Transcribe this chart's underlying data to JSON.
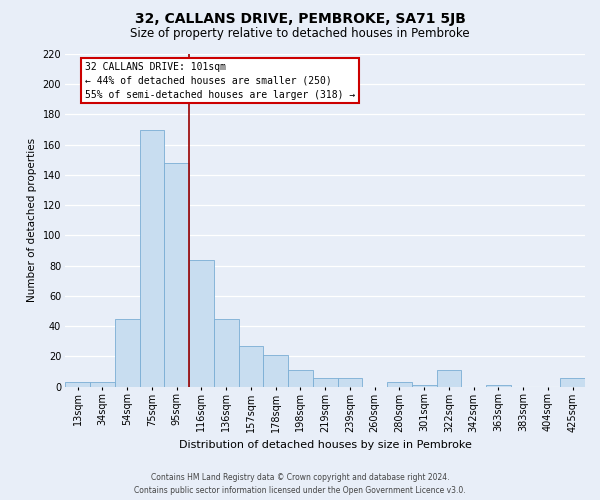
{
  "title": "32, CALLANS DRIVE, PEMBROKE, SA71 5JB",
  "subtitle": "Size of property relative to detached houses in Pembroke",
  "xlabel": "Distribution of detached houses by size in Pembroke",
  "ylabel": "Number of detached properties",
  "bin_labels": [
    "13sqm",
    "34sqm",
    "54sqm",
    "75sqm",
    "95sqm",
    "116sqm",
    "136sqm",
    "157sqm",
    "178sqm",
    "198sqm",
    "219sqm",
    "239sqm",
    "260sqm",
    "280sqm",
    "301sqm",
    "322sqm",
    "342sqm",
    "363sqm",
    "383sqm",
    "404sqm",
    "425sqm"
  ],
  "bar_values": [
    3,
    3,
    45,
    170,
    148,
    84,
    45,
    27,
    21,
    11,
    6,
    6,
    0,
    3,
    1,
    11,
    0,
    1,
    0,
    0,
    6
  ],
  "bar_color": "#c8ddf0",
  "bar_edge_color": "#7aadd4",
  "vline_x": 4.5,
  "vline_color": "#990000",
  "annotation_title": "32 CALLANS DRIVE: 101sqm",
  "annotation_line1": "← 44% of detached houses are smaller (250)",
  "annotation_line2": "55% of semi-detached houses are larger (318) →",
  "annotation_box_facecolor": "#ffffff",
  "annotation_box_edgecolor": "#cc0000",
  "ylim": [
    0,
    220
  ],
  "yticks": [
    0,
    20,
    40,
    60,
    80,
    100,
    120,
    140,
    160,
    180,
    200,
    220
  ],
  "footnote1": "Contains HM Land Registry data © Crown copyright and database right 2024.",
  "footnote2": "Contains public sector information licensed under the Open Government Licence v3.0.",
  "bg_color": "#e8eef8",
  "plot_bg_color": "#e8eef8",
  "grid_color": "#ffffff",
  "title_fontsize": 10,
  "subtitle_fontsize": 8.5,
  "xlabel_fontsize": 8,
  "ylabel_fontsize": 7.5,
  "tick_fontsize": 7,
  "annot_fontsize": 7,
  "footnote_fontsize": 5.5
}
